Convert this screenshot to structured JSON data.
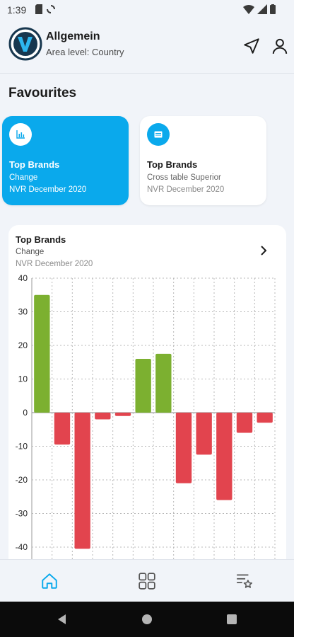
{
  "status_bar": {
    "time": "1:39"
  },
  "header": {
    "title": "Allgemein",
    "subtitle": "Area level: Country"
  },
  "favourites": {
    "title": "Favourites",
    "cards": [
      {
        "title": "Top Brands",
        "subtitle": "Change",
        "period": "NVR December 2020",
        "icon": "bar-chart-icon",
        "selected": true
      },
      {
        "title": "Top Brands",
        "subtitle": "Cross table Superior",
        "period": "NVR December 2020",
        "icon": "table-icon",
        "selected": false
      }
    ]
  },
  "chart_card": {
    "title": "Top Brands",
    "subtitle": "Change",
    "period": "NVR December 2020"
  },
  "chart_data": {
    "type": "bar",
    "categories": [
      "",
      "",
      "",
      "",
      "",
      "",
      "",
      "",
      "",
      "",
      "",
      ""
    ],
    "values": [
      35,
      -9.5,
      -40.5,
      -2,
      -1,
      16,
      17.5,
      -21,
      -12.5,
      -26,
      -6,
      -3
    ],
    "yticks": [
      40,
      30,
      20,
      10,
      0,
      -10,
      -20,
      -30,
      -40
    ],
    "ylim": [
      -45,
      40
    ],
    "grid": true,
    "colors": {
      "positive": "#7cb030",
      "negative": "#e2444e"
    }
  },
  "bottom_nav": {
    "items": [
      "home-icon",
      "grid-icon",
      "favourites-list-icon"
    ],
    "active": "home-icon"
  },
  "colors": {
    "accent": "#0aa9ec",
    "background": "#f1f4f9"
  }
}
